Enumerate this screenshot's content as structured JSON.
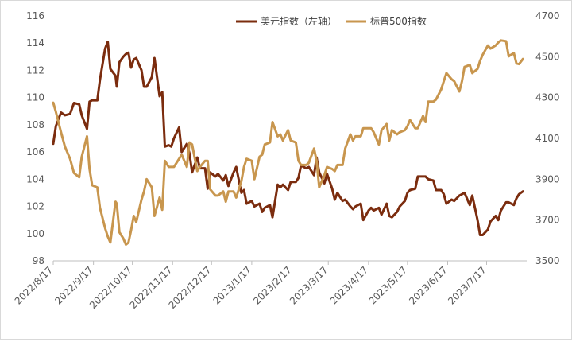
{
  "chart_data": {
    "type": "line",
    "title": "",
    "xlabel": "",
    "x_ticks": [
      "2022/8/17",
      "2022/9/17",
      "2022/10/17",
      "2022/11/17",
      "2022/12/17",
      "2023/1/17",
      "2023/2/17",
      "2023/3/17",
      "2023/4/17",
      "2023/5/17",
      "2023/6/17",
      "2023/7/17"
    ],
    "y_left": {
      "min": 98,
      "max": 116,
      "ticks": [
        "98",
        "100",
        "102",
        "104",
        "106",
        "108",
        "110",
        "112",
        "114",
        "116"
      ]
    },
    "y_right": {
      "min": 3500,
      "max": 4700,
      "ticks": [
        "3500",
        "3700",
        "3900",
        "4100",
        "4300",
        "4500",
        "4700"
      ]
    },
    "grid": false,
    "legend_position": "top-right",
    "series": [
      {
        "name": "美元指数（左轴）",
        "axis": "left",
        "color": "#7B2C0E",
        "points": [
          [
            "2022-08-17",
            106.6
          ],
          [
            "2022-08-19",
            107.9
          ],
          [
            "2022-08-23",
            108.9
          ],
          [
            "2022-08-26",
            108.7
          ],
          [
            "2022-08-30",
            108.8
          ],
          [
            "2022-09-02",
            109.6
          ],
          [
            "2022-09-06",
            109.5
          ],
          [
            "2022-09-08",
            108.7
          ],
          [
            "2022-09-12",
            107.7
          ],
          [
            "2022-09-14",
            109.7
          ],
          [
            "2022-09-16",
            109.8
          ],
          [
            "2022-09-20",
            109.8
          ],
          [
            "2022-09-22",
            111.3
          ],
          [
            "2022-09-26",
            113.6
          ],
          [
            "2022-09-28",
            114.1
          ],
          [
            "2022-09-30",
            112.1
          ],
          [
            "2022-10-04",
            111.6
          ],
          [
            "2022-10-05",
            110.8
          ],
          [
            "2022-10-07",
            112.6
          ],
          [
            "2022-10-10",
            113.0
          ],
          [
            "2022-10-12",
            113.2
          ],
          [
            "2022-10-14",
            113.3
          ],
          [
            "2022-10-16",
            112.2
          ],
          [
            "2022-10-18",
            112.8
          ],
          [
            "2022-10-20",
            112.9
          ],
          [
            "2022-10-24",
            112.0
          ],
          [
            "2022-10-26",
            110.8
          ],
          [
            "2022-10-28",
            110.8
          ],
          [
            "2022-11-01",
            111.5
          ],
          [
            "2022-11-03",
            112.9
          ],
          [
            "2022-11-07",
            110.1
          ],
          [
            "2022-11-09",
            110.4
          ],
          [
            "2022-11-11",
            106.4
          ],
          [
            "2022-11-14",
            106.5
          ],
          [
            "2022-11-16",
            106.4
          ],
          [
            "2022-11-18",
            107.0
          ],
          [
            "2022-11-22",
            107.8
          ],
          [
            "2022-11-24",
            106.0
          ],
          [
            "2022-11-28",
            106.6
          ],
          [
            "2022-11-30",
            105.9
          ],
          [
            "2022-12-02",
            104.5
          ],
          [
            "2022-12-06",
            105.6
          ],
          [
            "2022-12-08",
            104.8
          ],
          [
            "2022-12-12",
            104.8
          ],
          [
            "2022-12-14",
            103.3
          ],
          [
            "2022-12-16",
            104.5
          ],
          [
            "2022-12-20",
            104.2
          ],
          [
            "2022-12-22",
            104.4
          ],
          [
            "2022-12-26",
            103.9
          ],
          [
            "2022-12-28",
            104.3
          ],
          [
            "2022-12-30",
            103.5
          ],
          [
            "2023-01-03",
            104.5
          ],
          [
            "2023-01-05",
            104.9
          ],
          [
            "2023-01-09",
            103.0
          ],
          [
            "2023-01-11",
            103.2
          ],
          [
            "2023-01-13",
            102.2
          ],
          [
            "2023-01-17",
            102.4
          ],
          [
            "2023-01-19",
            102.0
          ],
          [
            "2023-01-23",
            102.2
          ],
          [
            "2023-01-25",
            101.6
          ],
          [
            "2023-01-27",
            101.9
          ],
          [
            "2023-01-31",
            102.1
          ],
          [
            "2023-02-02",
            101.2
          ],
          [
            "2023-02-06",
            103.6
          ],
          [
            "2023-02-08",
            103.4
          ],
          [
            "2023-02-10",
            103.6
          ],
          [
            "2023-02-14",
            103.2
          ],
          [
            "2023-02-16",
            103.8
          ],
          [
            "2023-02-20",
            103.8
          ],
          [
            "2023-02-22",
            104.1
          ],
          [
            "2023-02-24",
            105.0
          ],
          [
            "2023-02-28",
            104.8
          ],
          [
            "2023-03-02",
            104.9
          ],
          [
            "2023-03-06",
            104.3
          ],
          [
            "2023-03-08",
            105.6
          ],
          [
            "2023-03-10",
            104.5
          ],
          [
            "2023-03-14",
            103.7
          ],
          [
            "2023-03-16",
            104.4
          ],
          [
            "2023-03-20",
            103.3
          ],
          [
            "2023-03-22",
            102.5
          ],
          [
            "2023-03-24",
            103.0
          ],
          [
            "2023-03-28",
            102.4
          ],
          [
            "2023-03-30",
            102.5
          ],
          [
            "2023-04-03",
            102.0
          ],
          [
            "2023-04-05",
            101.8
          ],
          [
            "2023-04-07",
            102.0
          ],
          [
            "2023-04-11",
            102.2
          ],
          [
            "2023-04-13",
            101.0
          ],
          [
            "2023-04-17",
            101.7
          ],
          [
            "2023-04-19",
            101.9
          ],
          [
            "2023-04-21",
            101.7
          ],
          [
            "2023-04-25",
            101.9
          ],
          [
            "2023-04-27",
            101.4
          ],
          [
            "2023-05-01",
            102.2
          ],
          [
            "2023-05-03",
            101.3
          ],
          [
            "2023-05-05",
            101.2
          ],
          [
            "2023-05-09",
            101.6
          ],
          [
            "2023-05-11",
            102.0
          ],
          [
            "2023-05-15",
            102.4
          ],
          [
            "2023-05-17",
            103.0
          ],
          [
            "2023-05-19",
            103.2
          ],
          [
            "2023-05-23",
            103.3
          ],
          [
            "2023-05-25",
            104.2
          ],
          [
            "2023-05-29",
            104.2
          ],
          [
            "2023-05-31",
            104.2
          ],
          [
            "2023-06-02",
            104.0
          ],
          [
            "2023-06-06",
            103.9
          ],
          [
            "2023-06-08",
            103.2
          ],
          [
            "2023-06-12",
            103.2
          ],
          [
            "2023-06-14",
            102.9
          ],
          [
            "2023-06-16",
            102.2
          ],
          [
            "2023-06-20",
            102.5
          ],
          [
            "2023-06-22",
            102.4
          ],
          [
            "2023-06-26",
            102.8
          ],
          [
            "2023-06-28",
            102.9
          ],
          [
            "2023-06-30",
            103.0
          ],
          [
            "2023-07-04",
            102.1
          ],
          [
            "2023-07-06",
            102.8
          ],
          [
            "2023-07-10",
            101.0
          ],
          [
            "2023-07-12",
            99.9
          ],
          [
            "2023-07-14",
            99.9
          ],
          [
            "2023-07-18",
            100.3
          ],
          [
            "2023-07-20",
            100.9
          ],
          [
            "2023-07-24",
            101.3
          ],
          [
            "2023-07-26",
            101.0
          ],
          [
            "2023-07-28",
            101.7
          ],
          [
            "2023-08-01",
            102.3
          ],
          [
            "2023-08-03",
            102.3
          ],
          [
            "2023-08-07",
            102.1
          ],
          [
            "2023-08-09",
            102.6
          ],
          [
            "2023-08-11",
            102.9
          ],
          [
            "2023-08-14",
            103.1
          ]
        ]
      },
      {
        "name": "标普500指数",
        "axis": "right",
        "color": "#C8964E",
        "points": [
          [
            "2022-08-17",
            4275
          ],
          [
            "2022-08-19",
            4230
          ],
          [
            "2022-08-23",
            4130
          ],
          [
            "2022-08-26",
            4060
          ],
          [
            "2022-08-30",
            4000
          ],
          [
            "2022-09-02",
            3930
          ],
          [
            "2022-09-06",
            3910
          ],
          [
            "2022-09-08",
            4010
          ],
          [
            "2022-09-12",
            4110
          ],
          [
            "2022-09-14",
            3950
          ],
          [
            "2022-09-16",
            3870
          ],
          [
            "2022-09-20",
            3860
          ],
          [
            "2022-09-22",
            3760
          ],
          [
            "2022-09-26",
            3660
          ],
          [
            "2022-09-28",
            3620
          ],
          [
            "2022-09-30",
            3590
          ],
          [
            "2022-10-04",
            3790
          ],
          [
            "2022-10-05",
            3780
          ],
          [
            "2022-10-07",
            3640
          ],
          [
            "2022-10-10",
            3610
          ],
          [
            "2022-10-12",
            3580
          ],
          [
            "2022-10-14",
            3590
          ],
          [
            "2022-10-16",
            3650
          ],
          [
            "2022-10-18",
            3720
          ],
          [
            "2022-10-20",
            3690
          ],
          [
            "2022-10-24",
            3800
          ],
          [
            "2022-10-26",
            3840
          ],
          [
            "2022-10-28",
            3900
          ],
          [
            "2022-11-01",
            3860
          ],
          [
            "2022-11-03",
            3720
          ],
          [
            "2022-11-07",
            3810
          ],
          [
            "2022-11-09",
            3750
          ],
          [
            "2022-11-11",
            3990
          ],
          [
            "2022-11-14",
            3960
          ],
          [
            "2022-11-16",
            3960
          ],
          [
            "2022-11-18",
            3960
          ],
          [
            "2022-11-22",
            4000
          ],
          [
            "2022-11-24",
            4020
          ],
          [
            "2022-11-28",
            3960
          ],
          [
            "2022-11-30",
            4080
          ],
          [
            "2022-12-02",
            4070
          ],
          [
            "2022-12-06",
            3940
          ],
          [
            "2022-12-08",
            3960
          ],
          [
            "2022-12-12",
            3990
          ],
          [
            "2022-12-14",
            3990
          ],
          [
            "2022-12-16",
            3850
          ],
          [
            "2022-12-20",
            3820
          ],
          [
            "2022-12-22",
            3820
          ],
          [
            "2022-12-26",
            3840
          ],
          [
            "2022-12-28",
            3790
          ],
          [
            "2022-12-30",
            3840
          ],
          [
            "2023-01-03",
            3840
          ],
          [
            "2023-01-05",
            3810
          ],
          [
            "2023-01-09",
            3890
          ],
          [
            "2023-01-11",
            3960
          ],
          [
            "2023-01-13",
            4000
          ],
          [
            "2023-01-17",
            3990
          ],
          [
            "2023-01-19",
            3900
          ],
          [
            "2023-01-23",
            4010
          ],
          [
            "2023-01-25",
            4020
          ],
          [
            "2023-01-27",
            4070
          ],
          [
            "2023-01-31",
            4080
          ],
          [
            "2023-02-02",
            4180
          ],
          [
            "2023-02-06",
            4110
          ],
          [
            "2023-02-08",
            4120
          ],
          [
            "2023-02-10",
            4090
          ],
          [
            "2023-02-14",
            4140
          ],
          [
            "2023-02-16",
            4090
          ],
          [
            "2023-02-20",
            4080
          ],
          [
            "2023-02-22",
            3990
          ],
          [
            "2023-02-24",
            3970
          ],
          [
            "2023-02-28",
            3970
          ],
          [
            "2023-03-02",
            3980
          ],
          [
            "2023-03-06",
            4050
          ],
          [
            "2023-03-08",
            3990
          ],
          [
            "2023-03-10",
            3860
          ],
          [
            "2023-03-14",
            3920
          ],
          [
            "2023-03-16",
            3960
          ],
          [
            "2023-03-20",
            3950
          ],
          [
            "2023-03-22",
            3940
          ],
          [
            "2023-03-24",
            3970
          ],
          [
            "2023-03-28",
            3970
          ],
          [
            "2023-03-30",
            4050
          ],
          [
            "2023-04-03",
            4120
          ],
          [
            "2023-04-05",
            4090
          ],
          [
            "2023-04-07",
            4110
          ],
          [
            "2023-04-11",
            4110
          ],
          [
            "2023-04-13",
            4150
          ],
          [
            "2023-04-17",
            4150
          ],
          [
            "2023-04-19",
            4150
          ],
          [
            "2023-04-21",
            4130
          ],
          [
            "2023-04-25",
            4070
          ],
          [
            "2023-04-27",
            4140
          ],
          [
            "2023-05-01",
            4170
          ],
          [
            "2023-05-03",
            4090
          ],
          [
            "2023-05-05",
            4140
          ],
          [
            "2023-05-09",
            4120
          ],
          [
            "2023-05-11",
            4130
          ],
          [
            "2023-05-15",
            4140
          ],
          [
            "2023-05-17",
            4160
          ],
          [
            "2023-05-19",
            4190
          ],
          [
            "2023-05-23",
            4150
          ],
          [
            "2023-05-25",
            4150
          ],
          [
            "2023-05-29",
            4210
          ],
          [
            "2023-05-31",
            4180
          ],
          [
            "2023-06-02",
            4280
          ],
          [
            "2023-06-06",
            4280
          ],
          [
            "2023-06-08",
            4290
          ],
          [
            "2023-06-12",
            4340
          ],
          [
            "2023-06-14",
            4380
          ],
          [
            "2023-06-16",
            4420
          ],
          [
            "2023-06-20",
            4390
          ],
          [
            "2023-06-22",
            4380
          ],
          [
            "2023-06-26",
            4330
          ],
          [
            "2023-06-28",
            4380
          ],
          [
            "2023-06-30",
            4450
          ],
          [
            "2023-07-04",
            4460
          ],
          [
            "2023-07-06",
            4420
          ],
          [
            "2023-07-10",
            4440
          ],
          [
            "2023-07-12",
            4480
          ],
          [
            "2023-07-14",
            4510
          ],
          [
            "2023-07-18",
            4555
          ],
          [
            "2023-07-20",
            4540
          ],
          [
            "2023-07-24",
            4555
          ],
          [
            "2023-07-26",
            4570
          ],
          [
            "2023-07-28",
            4580
          ],
          [
            "2023-08-01",
            4576
          ],
          [
            "2023-08-03",
            4502
          ],
          [
            "2023-08-07",
            4518
          ],
          [
            "2023-08-09",
            4467
          ],
          [
            "2023-08-11",
            4464
          ],
          [
            "2023-08-14",
            4489
          ]
        ]
      }
    ]
  }
}
